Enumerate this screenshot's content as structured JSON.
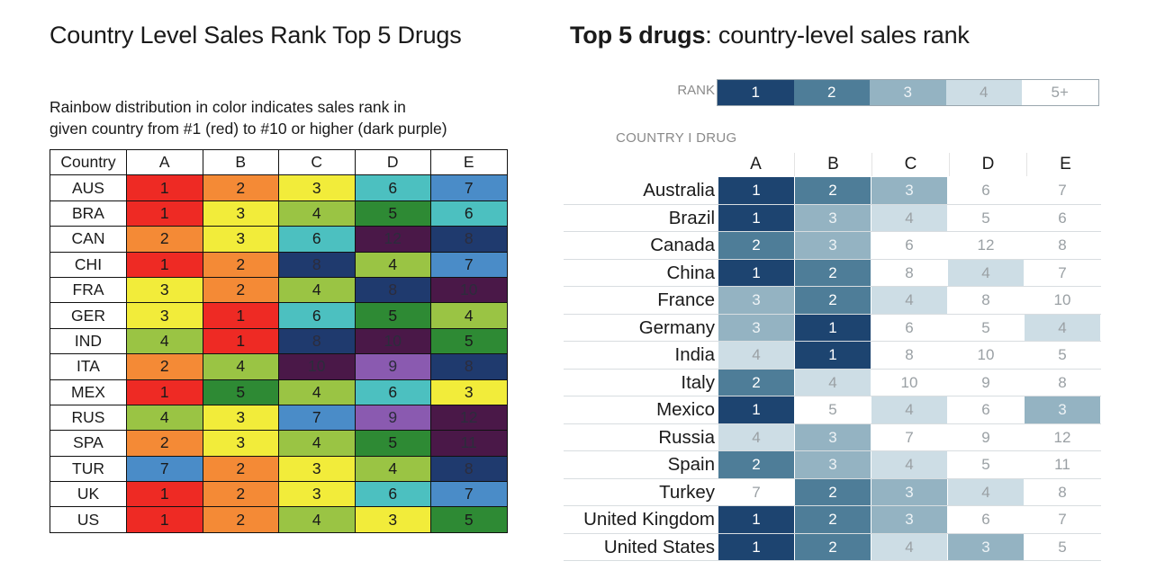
{
  "left": {
    "title": "Country Level Sales Rank Top 5 Drugs",
    "subtitle_line1": "Rainbow distribution in color indicates sales rank in",
    "subtitle_line2": "given country from #1 (red) to #10 or higher (dark purple)",
    "country_header": "Country"
  },
  "right": {
    "title_bold": "Top 5 drugs",
    "title_rest": ": country-level sales rank",
    "rank_label": "RANK",
    "country_drug_label": "COUNTRY I DRUG",
    "rank_legend": [
      "1",
      "2",
      "3",
      "4",
      "5+"
    ]
  },
  "colors": {
    "rainbow": {
      "1": "#ee2a24",
      "2": "#f48a36",
      "3": "#f2ec3a",
      "4": "#9ac444",
      "5": "#2e8a34",
      "6": "#4cc0c0",
      "7": "#4a8cc8",
      "8": "#1f3a6e",
      "9": "#8a5ab0",
      "10": "#4a1848",
      "11": "#4a1848",
      "12": "#4a1848"
    },
    "blues": {
      "1": "#1d4470",
      "2": "#4e7d98",
      "3": "#94b3c2",
      "4": "#cddde5",
      "5+": "#ffffff"
    }
  },
  "chart_data": [
    {
      "type": "heatmap",
      "title": "Country Level Sales Rank Top 5 Drugs",
      "subtitle": "Rainbow distribution in color indicates sales rank in given country from #1 (red) to #10 or higher (dark purple)",
      "columns": [
        "A",
        "B",
        "C",
        "D",
        "E"
      ],
      "rows": [
        "AUS",
        "BRA",
        "CAN",
        "CHI",
        "FRA",
        "GER",
        "IND",
        "ITA",
        "MEX",
        "RUS",
        "SPA",
        "TUR",
        "UK",
        "US"
      ],
      "values": [
        [
          1,
          2,
          3,
          6,
          7
        ],
        [
          1,
          3,
          4,
          5,
          6
        ],
        [
          2,
          3,
          6,
          12,
          8
        ],
        [
          1,
          2,
          8,
          4,
          7
        ],
        [
          3,
          2,
          4,
          8,
          10
        ],
        [
          3,
          1,
          6,
          5,
          4
        ],
        [
          4,
          1,
          8,
          10,
          5
        ],
        [
          2,
          4,
          10,
          9,
          8
        ],
        [
          1,
          5,
          4,
          6,
          3
        ],
        [
          4,
          3,
          7,
          9,
          12
        ],
        [
          2,
          3,
          4,
          5,
          11
        ],
        [
          7,
          2,
          3,
          4,
          8
        ],
        [
          1,
          2,
          3,
          6,
          7
        ],
        [
          1,
          2,
          4,
          3,
          5
        ]
      ]
    },
    {
      "type": "heatmap",
      "title": "Top 5 drugs: country-level sales rank",
      "columns": [
        "A",
        "B",
        "C",
        "D",
        "E"
      ],
      "rows": [
        "Australia",
        "Brazil",
        "Canada",
        "China",
        "France",
        "Germany",
        "India",
        "Italy",
        "Mexico",
        "Russia",
        "Spain",
        "Turkey",
        "United Kingdom",
        "United States"
      ],
      "values": [
        [
          1,
          2,
          3,
          6,
          7
        ],
        [
          1,
          3,
          4,
          5,
          6
        ],
        [
          2,
          3,
          6,
          12,
          8
        ],
        [
          1,
          2,
          8,
          4,
          7
        ],
        [
          3,
          2,
          4,
          8,
          10
        ],
        [
          3,
          1,
          6,
          5,
          4
        ],
        [
          4,
          1,
          8,
          10,
          5
        ],
        [
          2,
          4,
          10,
          9,
          8
        ],
        [
          1,
          5,
          4,
          6,
          3
        ],
        [
          4,
          3,
          7,
          9,
          12
        ],
        [
          2,
          3,
          4,
          5,
          11
        ],
        [
          7,
          2,
          3,
          4,
          8
        ],
        [
          1,
          2,
          3,
          6,
          7
        ],
        [
          1,
          2,
          4,
          3,
          5
        ]
      ]
    }
  ]
}
